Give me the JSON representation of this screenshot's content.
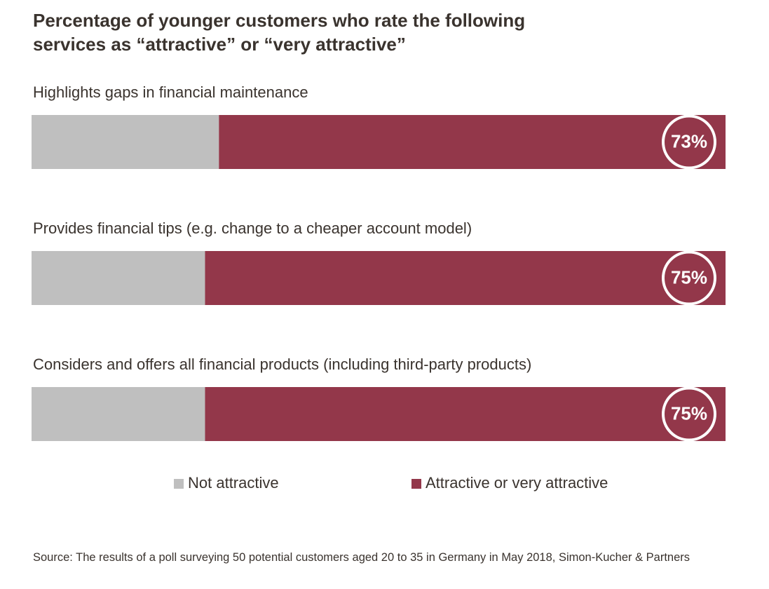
{
  "chart_data": {
    "type": "stacked-bar-horizontal",
    "title": "Percentage of younger customers who rate the following services as “attractive” or “very attractive”",
    "categories": [
      "Highlights gaps in financial maintenance",
      "Provides financial tips (e.g. change to a cheaper account model)",
      "Considers and offers all financial products (including third-party products)"
    ],
    "series": [
      {
        "name": "Not attractive",
        "color": "#bfbfbf",
        "values": [
          27,
          25,
          25
        ]
      },
      {
        "name": "Attractive or very attractive",
        "color": "#93374a",
        "values": [
          73,
          75,
          75
        ],
        "value_labels": [
          "73%",
          "75%",
          "75%"
        ]
      }
    ],
    "source": "Source: The results of a poll surveying 50 potential customers aged 20 to 35 in Germany in May 2018, Simon-Kucher & Partners"
  }
}
